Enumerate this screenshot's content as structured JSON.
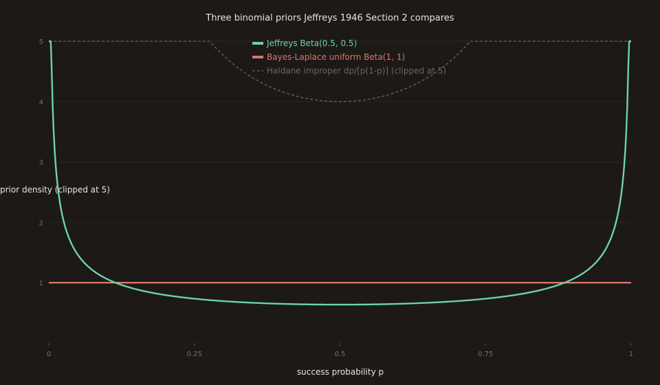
{
  "chart_data": {
    "type": "line",
    "title": "Three binomial priors Jeffreys 1946 Section 2 compares",
    "xlabel": "success probability p",
    "ylabel": "prior density (clipped at 5)",
    "xlim": [
      0,
      1
    ],
    "ylim": [
      0,
      5
    ],
    "x_ticks": [
      0,
      0.25,
      0.5,
      0.75,
      1
    ],
    "x_tick_labels": [
      "0",
      "0.25",
      "0.5",
      "0.75",
      "1"
    ],
    "y_ticks": [
      1,
      2,
      3,
      4,
      5
    ],
    "y_tick_labels": [
      "1",
      "2",
      "3",
      "4",
      "5"
    ],
    "grid": true,
    "legend_position": "top-center",
    "clip": 5,
    "series": [
      {
        "name": "Jeffreys Beta(0.5, 0.5)",
        "color": "#6dd3a8",
        "style": "solid",
        "formula": "1/(pi*sqrt(p*(1-p)))"
      },
      {
        "name": "Bayes-Laplace uniform Beta(1, 1)",
        "color": "#d9776a",
        "style": "solid",
        "formula": "1"
      },
      {
        "name": "Haldane improper dp/[p(1-p)] (clipped at 5)",
        "color": "#6b6661",
        "style": "dashed",
        "formula": "1/(p*(1-p))"
      }
    ]
  }
}
